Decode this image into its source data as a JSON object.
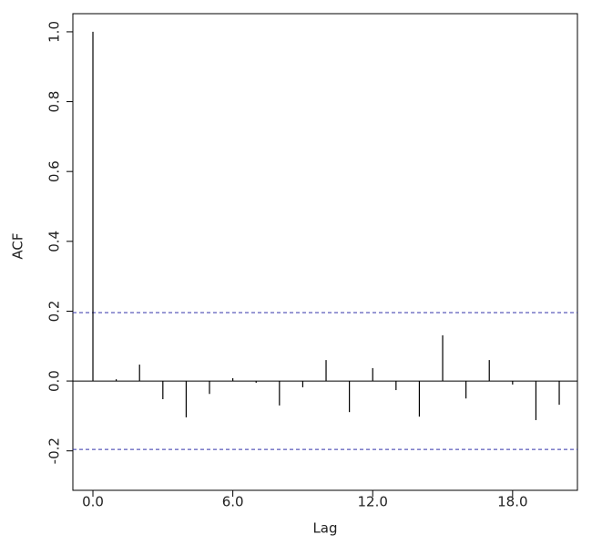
{
  "chart_data": {
    "type": "acf",
    "x_label": "Lag",
    "y_label": "ACF",
    "x": [
      0,
      1,
      2,
      3,
      4,
      5,
      6,
      7,
      8,
      9,
      10,
      11,
      12,
      13,
      14,
      15,
      16,
      17,
      18,
      19,
      20
    ],
    "values": [
      1.0,
      0.005,
      0.047,
      -0.052,
      -0.104,
      -0.037,
      0.008,
      -0.005,
      -0.07,
      -0.018,
      0.06,
      -0.089,
      0.037,
      -0.026,
      -0.102,
      0.131,
      -0.05,
      0.06,
      -0.01,
      -0.112,
      -0.068
    ],
    "color": "#000000",
    "confidence_bounds": [
      0.196,
      -0.196
    ],
    "bound_color": "#3333aa",
    "xlim": [
      -0.86,
      20.78
    ],
    "ylim": [
      -0.313,
      1.052
    ],
    "xticks": [
      {
        "value": 0,
        "label": "0.0"
      },
      {
        "value": 6,
        "label": "6.0"
      },
      {
        "value": 12,
        "label": "12.0"
      },
      {
        "value": 18,
        "label": "18.0"
      }
    ],
    "yticks": [
      -0.2,
      {
        "value": 0,
        "label": "0.0"
      },
      0.2,
      0.4,
      0.6,
      0.8,
      {
        "value": 1,
        "label": "1.0"
      }
    ]
  }
}
